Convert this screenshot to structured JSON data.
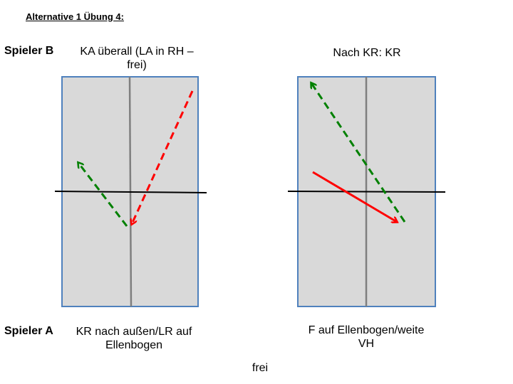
{
  "title": "Alternative 1 Übung 4:",
  "player_b": {
    "label": "Spieler B",
    "left_caption": [
      "KA überall (LA in RH –",
      "frei)"
    ],
    "right_caption": "Nach KR: KR"
  },
  "player_a": {
    "label": "Spieler A",
    "left_caption": [
      "KR nach außen/LR auf",
      "Ellenbogen"
    ],
    "right_caption": [
      "F auf Ellenbogen/weite",
      "VH"
    ]
  },
  "bottom_note": "frei",
  "colors": {
    "court_fill": "#d9d9d9",
    "court_border": "#4f81bd",
    "center_line": "#7f7f7f",
    "net": "#000000",
    "arrow_red": "#ff0000",
    "arrow_green": "#008000"
  }
}
